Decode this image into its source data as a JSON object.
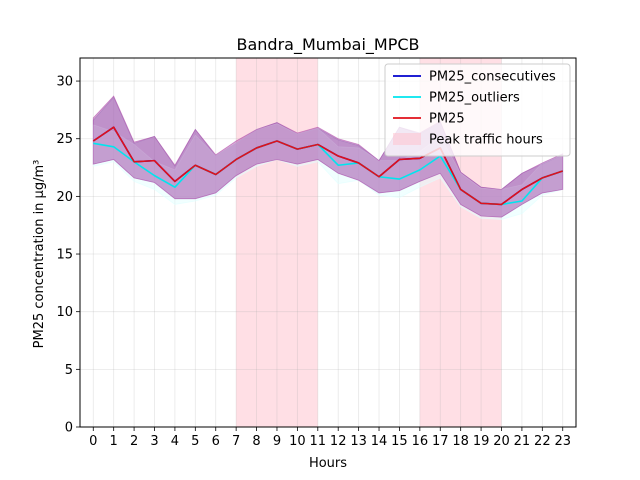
{
  "chart_data": {
    "type": "line",
    "title": "Bandra_Mumbai_MPCB",
    "xlabel": "Hours",
    "ylabel": "PM25 concentration in μg/m³",
    "xlim": [
      -0.65,
      23.65
    ],
    "ylim": [
      0,
      32
    ],
    "xticks": [
      0,
      1,
      2,
      3,
      4,
      5,
      6,
      7,
      8,
      9,
      10,
      11,
      12,
      13,
      14,
      15,
      16,
      17,
      18,
      19,
      20,
      21,
      22,
      23
    ],
    "yticks": [
      0,
      5,
      10,
      15,
      20,
      25,
      30
    ],
    "grid": true,
    "legend_position": "upper-right",
    "x": [
      0,
      1,
      2,
      3,
      4,
      5,
      6,
      7,
      8,
      9,
      10,
      11,
      12,
      13,
      14,
      15,
      16,
      17,
      18,
      19,
      20,
      21,
      22,
      23
    ],
    "shaded_regions": [
      {
        "label": "Peak traffic hours",
        "x_start": 7,
        "x_end": 11,
        "color": "#ffc0cb"
      },
      {
        "label": "Peak traffic hours",
        "x_start": 16,
        "x_end": 20,
        "color": "#ffc0cb"
      }
    ],
    "series": [
      {
        "name": "PM25_consecutives",
        "color": "#0000cd",
        "values": [
          24.8,
          26.0,
          23.0,
          23.1,
          21.3,
          22.7,
          21.9,
          23.2,
          24.2,
          24.8,
          24.1,
          24.5,
          23.5,
          22.9,
          21.7,
          23.2,
          23.3,
          24.2,
          20.6,
          19.4,
          19.3,
          20.6,
          21.6,
          22.2
        ],
        "lower": [
          22.8,
          23.2,
          21.6,
          21.2,
          19.8,
          19.8,
          20.3,
          21.8,
          22.8,
          23.2,
          22.8,
          23.2,
          22.0,
          21.4,
          20.3,
          20.5,
          21.3,
          22.0,
          19.3,
          18.3,
          18.2,
          19.3,
          20.3,
          20.6
        ],
        "upper": [
          26.6,
          28.6,
          24.6,
          25.2,
          22.6,
          25.8,
          23.5,
          24.6,
          25.8,
          26.4,
          25.4,
          25.9,
          24.9,
          24.4,
          23.1,
          26.0,
          25.4,
          26.4,
          22.1,
          20.8,
          20.6,
          22.0,
          22.8,
          23.6
        ],
        "band_fill": "#9090c8"
      },
      {
        "name": "PM25_outliers",
        "color": "#00e5ee",
        "values": [
          24.6,
          24.3,
          23.0,
          21.8,
          20.8,
          22.7,
          21.9,
          23.2,
          24.2,
          24.8,
          24.1,
          24.5,
          22.7,
          22.9,
          21.7,
          21.5,
          22.3,
          23.5,
          20.6,
          19.4,
          19.3,
          19.6,
          21.6,
          22.2
        ],
        "lower": [
          22.6,
          23.0,
          21.3,
          20.6,
          19.3,
          19.6,
          20.1,
          21.6,
          22.6,
          23.2,
          22.6,
          23.0,
          21.1,
          21.4,
          20.1,
          19.9,
          20.8,
          21.6,
          19.1,
          18.1,
          18.0,
          18.5,
          20.1,
          20.6
        ],
        "upper": [
          26.2,
          25.6,
          24.5,
          23.0,
          22.3,
          25.3,
          23.5,
          24.6,
          25.8,
          26.3,
          25.4,
          25.9,
          24.3,
          24.2,
          23.1,
          23.1,
          23.9,
          25.2,
          22.0,
          20.7,
          20.6,
          21.0,
          22.9,
          23.6
        ],
        "band_fill": "#e0ffff"
      },
      {
        "name": "PM25",
        "color": "#e0101a",
        "values": [
          24.8,
          26.0,
          23.0,
          23.1,
          21.3,
          22.7,
          21.9,
          23.2,
          24.2,
          24.8,
          24.1,
          24.5,
          23.5,
          22.9,
          21.7,
          23.2,
          23.3,
          24.2,
          20.6,
          19.4,
          19.3,
          20.6,
          21.6,
          22.2
        ],
        "lower": [
          22.8,
          23.2,
          21.6,
          21.2,
          19.8,
          19.8,
          20.3,
          21.8,
          22.8,
          23.2,
          22.8,
          23.2,
          22.0,
          21.4,
          20.3,
          20.5,
          21.3,
          22.0,
          19.3,
          18.3,
          18.2,
          19.3,
          20.3,
          20.6
        ],
        "upper": [
          26.8,
          28.7,
          24.7,
          25.2,
          22.7,
          25.8,
          23.6,
          24.8,
          25.8,
          26.4,
          25.5,
          26.0,
          25.0,
          24.5,
          23.1,
          26.0,
          25.5,
          26.5,
          22.1,
          20.8,
          20.6,
          22.0,
          22.9,
          23.7
        ],
        "band_fill": "#b04aa8"
      }
    ],
    "legend": [
      {
        "label": "PM25_consecutives",
        "kind": "line",
        "color": "#0000cd"
      },
      {
        "label": "PM25_outliers",
        "kind": "line",
        "color": "#00e5ee"
      },
      {
        "label": "PM25",
        "kind": "line",
        "color": "#e0101a"
      },
      {
        "label": "Peak traffic hours",
        "kind": "patch",
        "color": "#ffc0cb"
      }
    ]
  }
}
